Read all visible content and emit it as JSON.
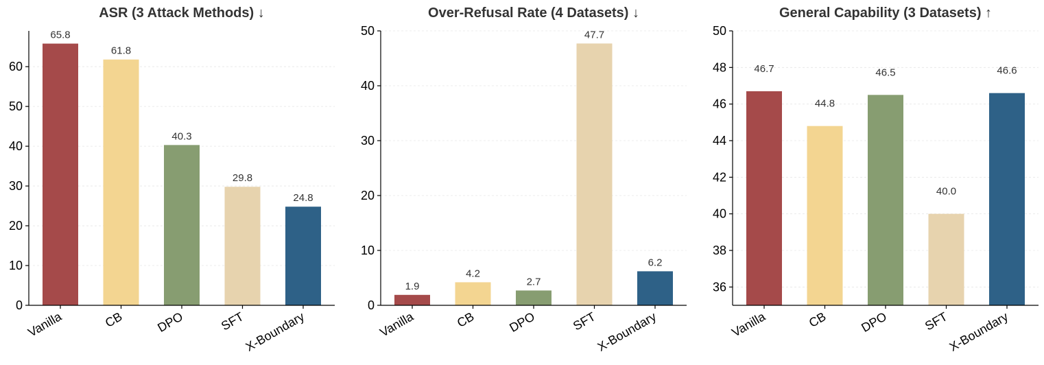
{
  "chart_data": [
    {
      "type": "bar",
      "title": "ASR (3 Attack Methods) ↓",
      "categories": [
        "Vanilla",
        "CB",
        "DPO",
        "SFT",
        "X-Boundary"
      ],
      "values": [
        65.8,
        61.8,
        40.3,
        29.8,
        24.8
      ],
      "value_labels": [
        "65.8",
        "61.8",
        "40.3",
        "29.8",
        "24.8"
      ],
      "ylim": [
        0,
        69
      ],
      "yticks": [
        0,
        10,
        20,
        30,
        40,
        50,
        60
      ],
      "grid": true
    },
    {
      "type": "bar",
      "title": "Over-Refusal Rate (4 Datasets) ↓",
      "categories": [
        "Vanilla",
        "CB",
        "DPO",
        "SFT",
        "X-Boundary"
      ],
      "values": [
        1.9,
        4.2,
        2.7,
        47.7,
        6.2
      ],
      "value_labels": [
        "1.9",
        "4.2",
        "2.7",
        "47.7",
        "6.2"
      ],
      "ylim": [
        0,
        50
      ],
      "yticks": [
        0,
        10,
        20,
        30,
        40,
        50
      ],
      "grid": true
    },
    {
      "type": "bar",
      "title": "General Capability (3 Datasets) ↑",
      "categories": [
        "Vanilla",
        "CB",
        "DPO",
        "SFT",
        "X-Boundary"
      ],
      "values": [
        46.7,
        44.8,
        46.5,
        40.0,
        46.6
      ],
      "value_labels": [
        "46.7",
        "44.8",
        "46.5",
        "40.0",
        "46.6"
      ],
      "ylim": [
        35,
        50
      ],
      "yticks": [
        36,
        38,
        40,
        42,
        44,
        46,
        48,
        50
      ],
      "grid": true
    }
  ],
  "bar_colors": [
    "#a54a4a",
    "#f3d591",
    "#879d71",
    "#e7d3ae",
    "#2e6187"
  ]
}
